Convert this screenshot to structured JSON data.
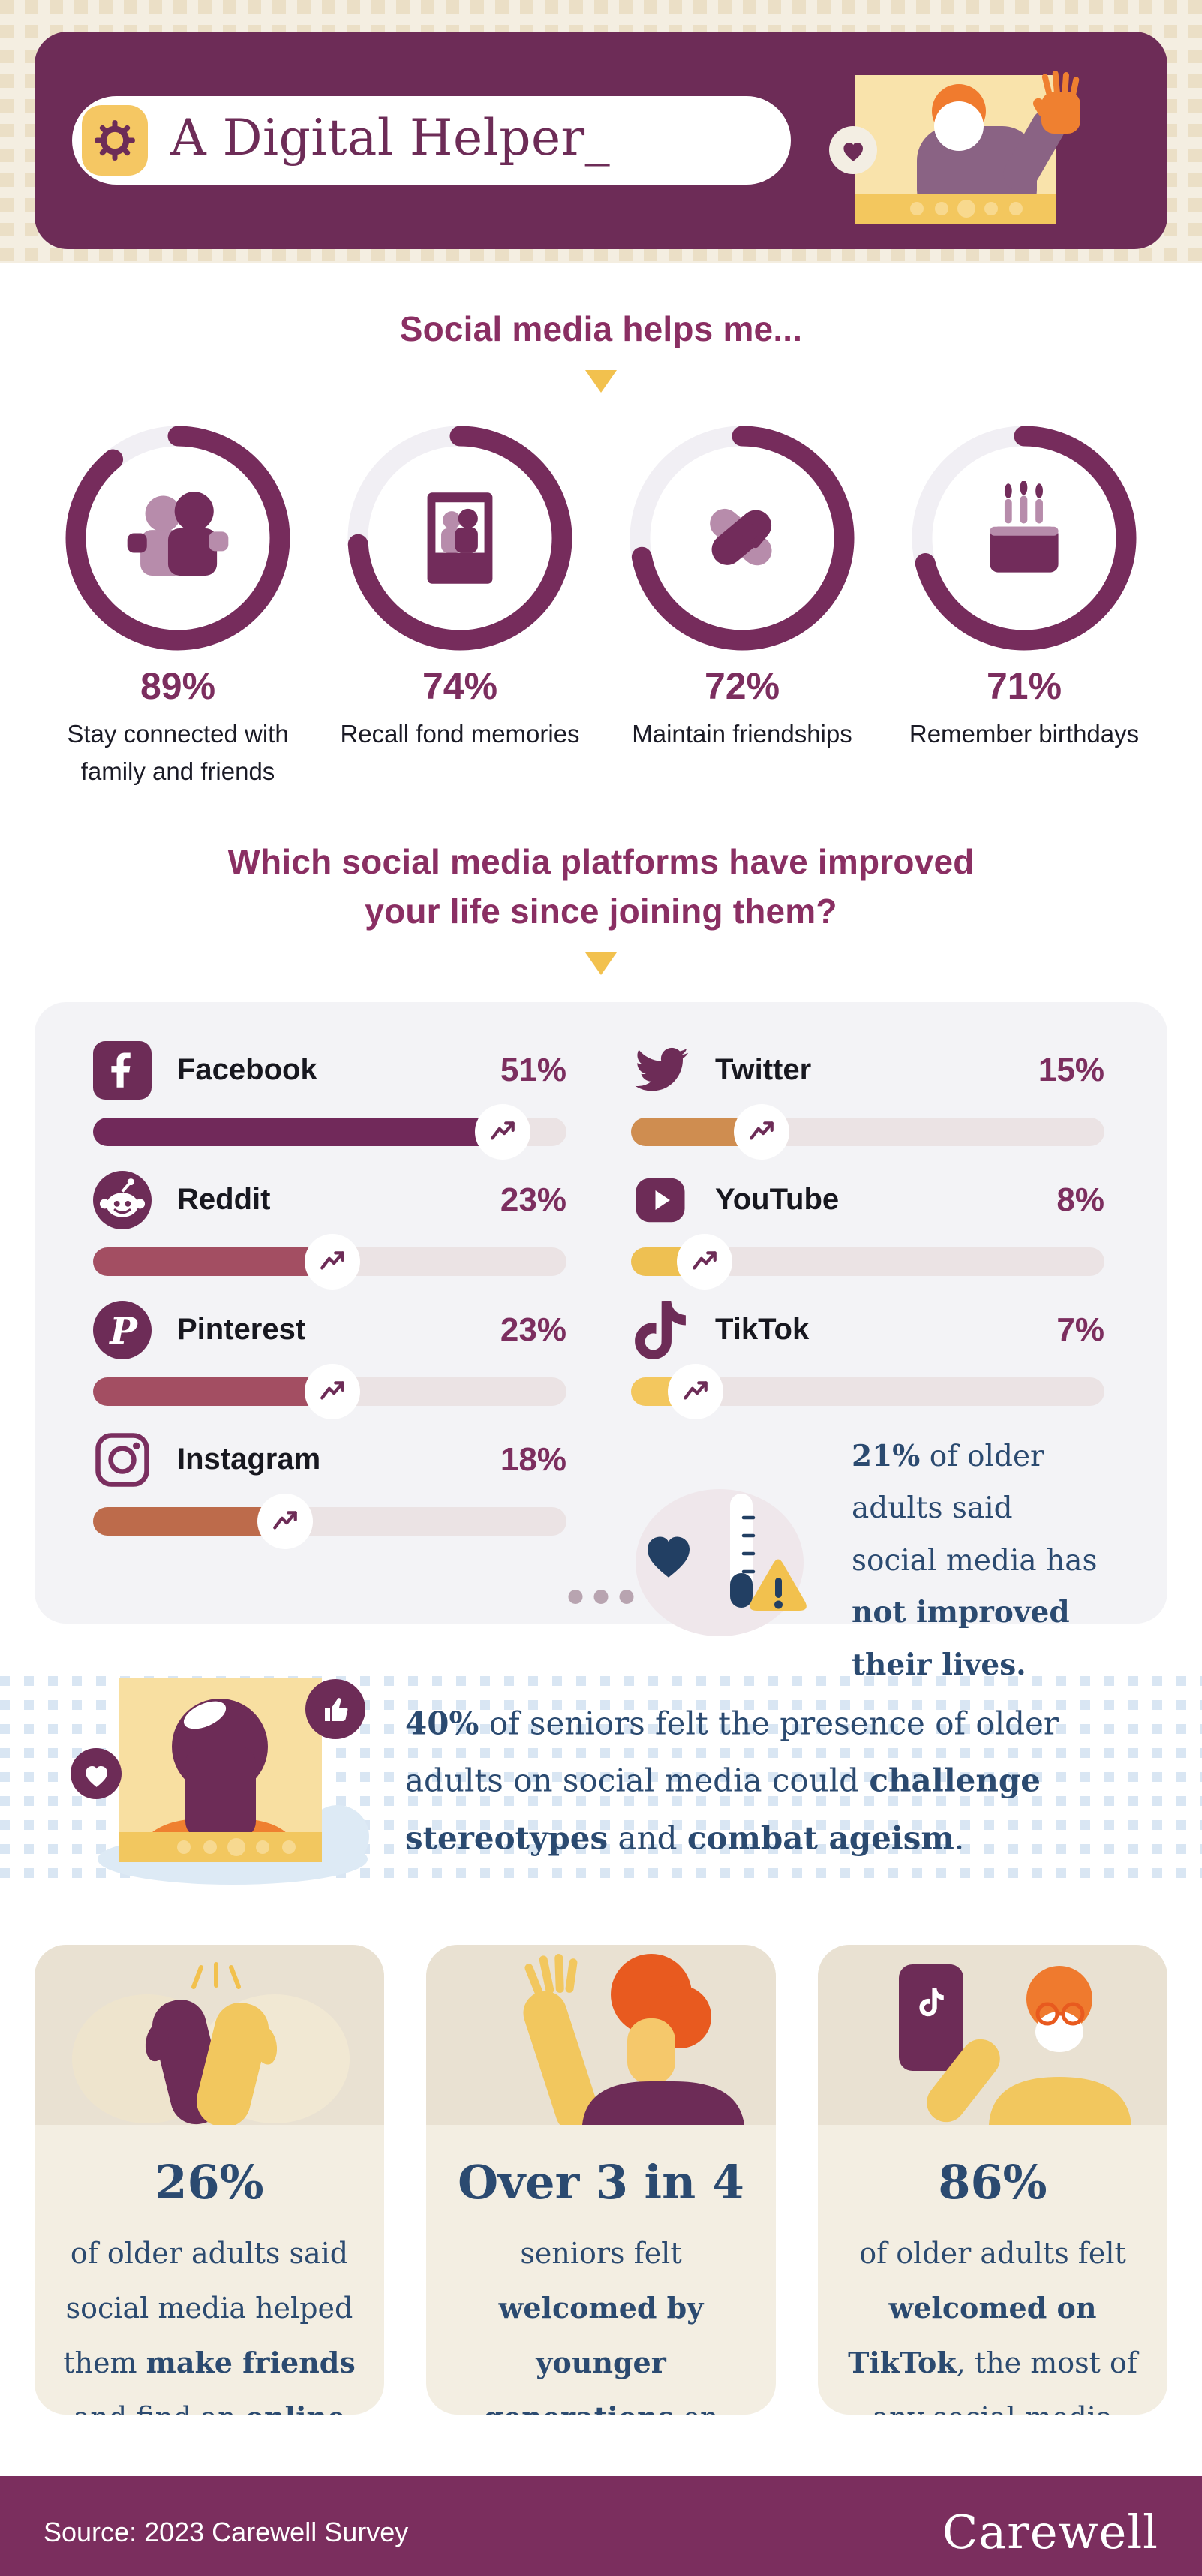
{
  "hero": {
    "title": "A Digital Helper_"
  },
  "section_helps": {
    "heading": "Social media helps me...",
    "stats": [
      {
        "pct": "89%",
        "pct_value": 89,
        "icon": "family-icon",
        "label": "Stay connected with family and friends"
      },
      {
        "pct": "74%",
        "pct_value": 74,
        "icon": "photo-memories-icon",
        "label": "Recall fond memories"
      },
      {
        "pct": "72%",
        "pct_value": 72,
        "icon": "handshake-icon",
        "label": "Maintain friendships"
      },
      {
        "pct": "71%",
        "pct_value": 71,
        "icon": "birthday-cake-icon",
        "label": "Remember birthdays"
      }
    ]
  },
  "section_platforms": {
    "heading_line1": "Which social media platforms have improved",
    "heading_line2": "your life since joining them?",
    "left": [
      {
        "name": "Facebook",
        "value": "51%",
        "icon": "facebook-icon",
        "bar": {
          "width_pct": 88,
          "color": "#71295a"
        }
      },
      {
        "name": "Reddit",
        "value": "23%",
        "icon": "reddit-icon",
        "bar": {
          "width_pct": 52,
          "color": "#a34e62"
        }
      },
      {
        "name": "Pinterest",
        "value": "23%",
        "icon": "pinterest-icon",
        "bar": {
          "width_pct": 52,
          "color": "#a34e62"
        }
      },
      {
        "name": "Instagram",
        "value": "18%",
        "icon": "instagram-icon",
        "bar": {
          "width_pct": 42,
          "color": "#bd6b4b"
        }
      }
    ],
    "right": [
      {
        "name": "Twitter",
        "value": "15%",
        "icon": "twitter-icon",
        "bar": {
          "width_pct": 29,
          "color": "#cf8d50"
        }
      },
      {
        "name": "YouTube",
        "value": "8%",
        "icon": "youtube-icon",
        "bar": {
          "width_pct": 17,
          "color": "#eec052"
        }
      },
      {
        "name": "TikTok",
        "value": "7%",
        "icon": "tiktok-icon",
        "bar": {
          "width_pct": 15,
          "color": "#f3c75e"
        }
      }
    ],
    "note": {
      "segments": [
        {
          "t": "21%",
          "b": true
        },
        {
          "t": " of older adults said social media has ",
          "b": false
        },
        {
          "t": "not improved their lives.",
          "b": true
        }
      ]
    }
  },
  "band40": {
    "segments": [
      {
        "t": "40%",
        "b": true
      },
      {
        "t": " of seniors felt the presence of older adults on social media could ",
        "b": false
      },
      {
        "t": "challenge stereotypes",
        "b": true
      },
      {
        "t": " and ",
        "b": false
      },
      {
        "t": "combat ageism",
        "b": true
      },
      {
        "t": ".",
        "b": false
      }
    ]
  },
  "cards": [
    {
      "headline": "26%",
      "segments": [
        {
          "t": "of older adults said social media helped them ",
          "b": false
        },
        {
          "t": "make friends",
          "b": true
        },
        {
          "t": " and find an ",
          "b": false
        },
        {
          "t": "online community",
          "b": true
        },
        {
          "t": ".",
          "b": false
        }
      ]
    },
    {
      "headline": "Over 3 in 4",
      "segments": [
        {
          "t": "seniors felt ",
          "b": false
        },
        {
          "t": "welcomed by younger generations",
          "b": true
        },
        {
          "t": " on social media.",
          "b": false
        }
      ]
    },
    {
      "headline": "86%",
      "segments": [
        {
          "t": "of older adults felt ",
          "b": false
        },
        {
          "t": "welcomed on TikTok",
          "b": true
        },
        {
          "t": ", the most of any social media platform.",
          "b": false
        }
      ]
    }
  ],
  "footer": {
    "source": "Source: 2023 Carewell Survey",
    "brand": "Carewell"
  },
  "colors": {
    "plum_dark": "#6d2c57",
    "plum": "#7c2e5f",
    "magenta_heading": "#8a2f63",
    "navy": "#2b4a70",
    "yellow": "#f2c75e",
    "gold": "#f2c14e",
    "orange": "#ef8030",
    "cream": "#f4eee1",
    "panel_gray": "#f3f3f6",
    "track": "#ebe3e4",
    "card_beige_top": "#e9e1d2",
    "card_beige": "#f3eee2"
  },
  "chart_data": [
    {
      "type": "radial-progress",
      "title": "Social media helps me...",
      "categories": [
        "Stay connected with family and friends",
        "Recall fond memories",
        "Maintain friendships",
        "Remember birthdays"
      ],
      "values": [
        89,
        74,
        72,
        71
      ],
      "unit": "%"
    },
    {
      "type": "bar",
      "title": "Which social media platforms have improved your life since joining them?",
      "categories": [
        "Facebook",
        "Reddit",
        "Pinterest",
        "Instagram",
        "Twitter",
        "YouTube",
        "TikTok"
      ],
      "values": [
        51,
        23,
        23,
        18,
        15,
        8,
        7
      ],
      "unit": "%",
      "note": "21% of older adults said social media has not improved their lives."
    },
    {
      "type": "callouts",
      "values": [
        {
          "value": "40%",
          "label": "of seniors felt the presence of older adults on social media could challenge stereotypes and combat ageism"
        },
        {
          "value": "26%",
          "label": "of older adults said social media helped them make friends and find an online community"
        },
        {
          "value": "Over 3 in 4",
          "label": "seniors felt welcomed by younger generations on social media"
        },
        {
          "value": "86%",
          "label": "of older adults felt welcomed on TikTok, the most of any social media platform"
        }
      ]
    }
  ]
}
